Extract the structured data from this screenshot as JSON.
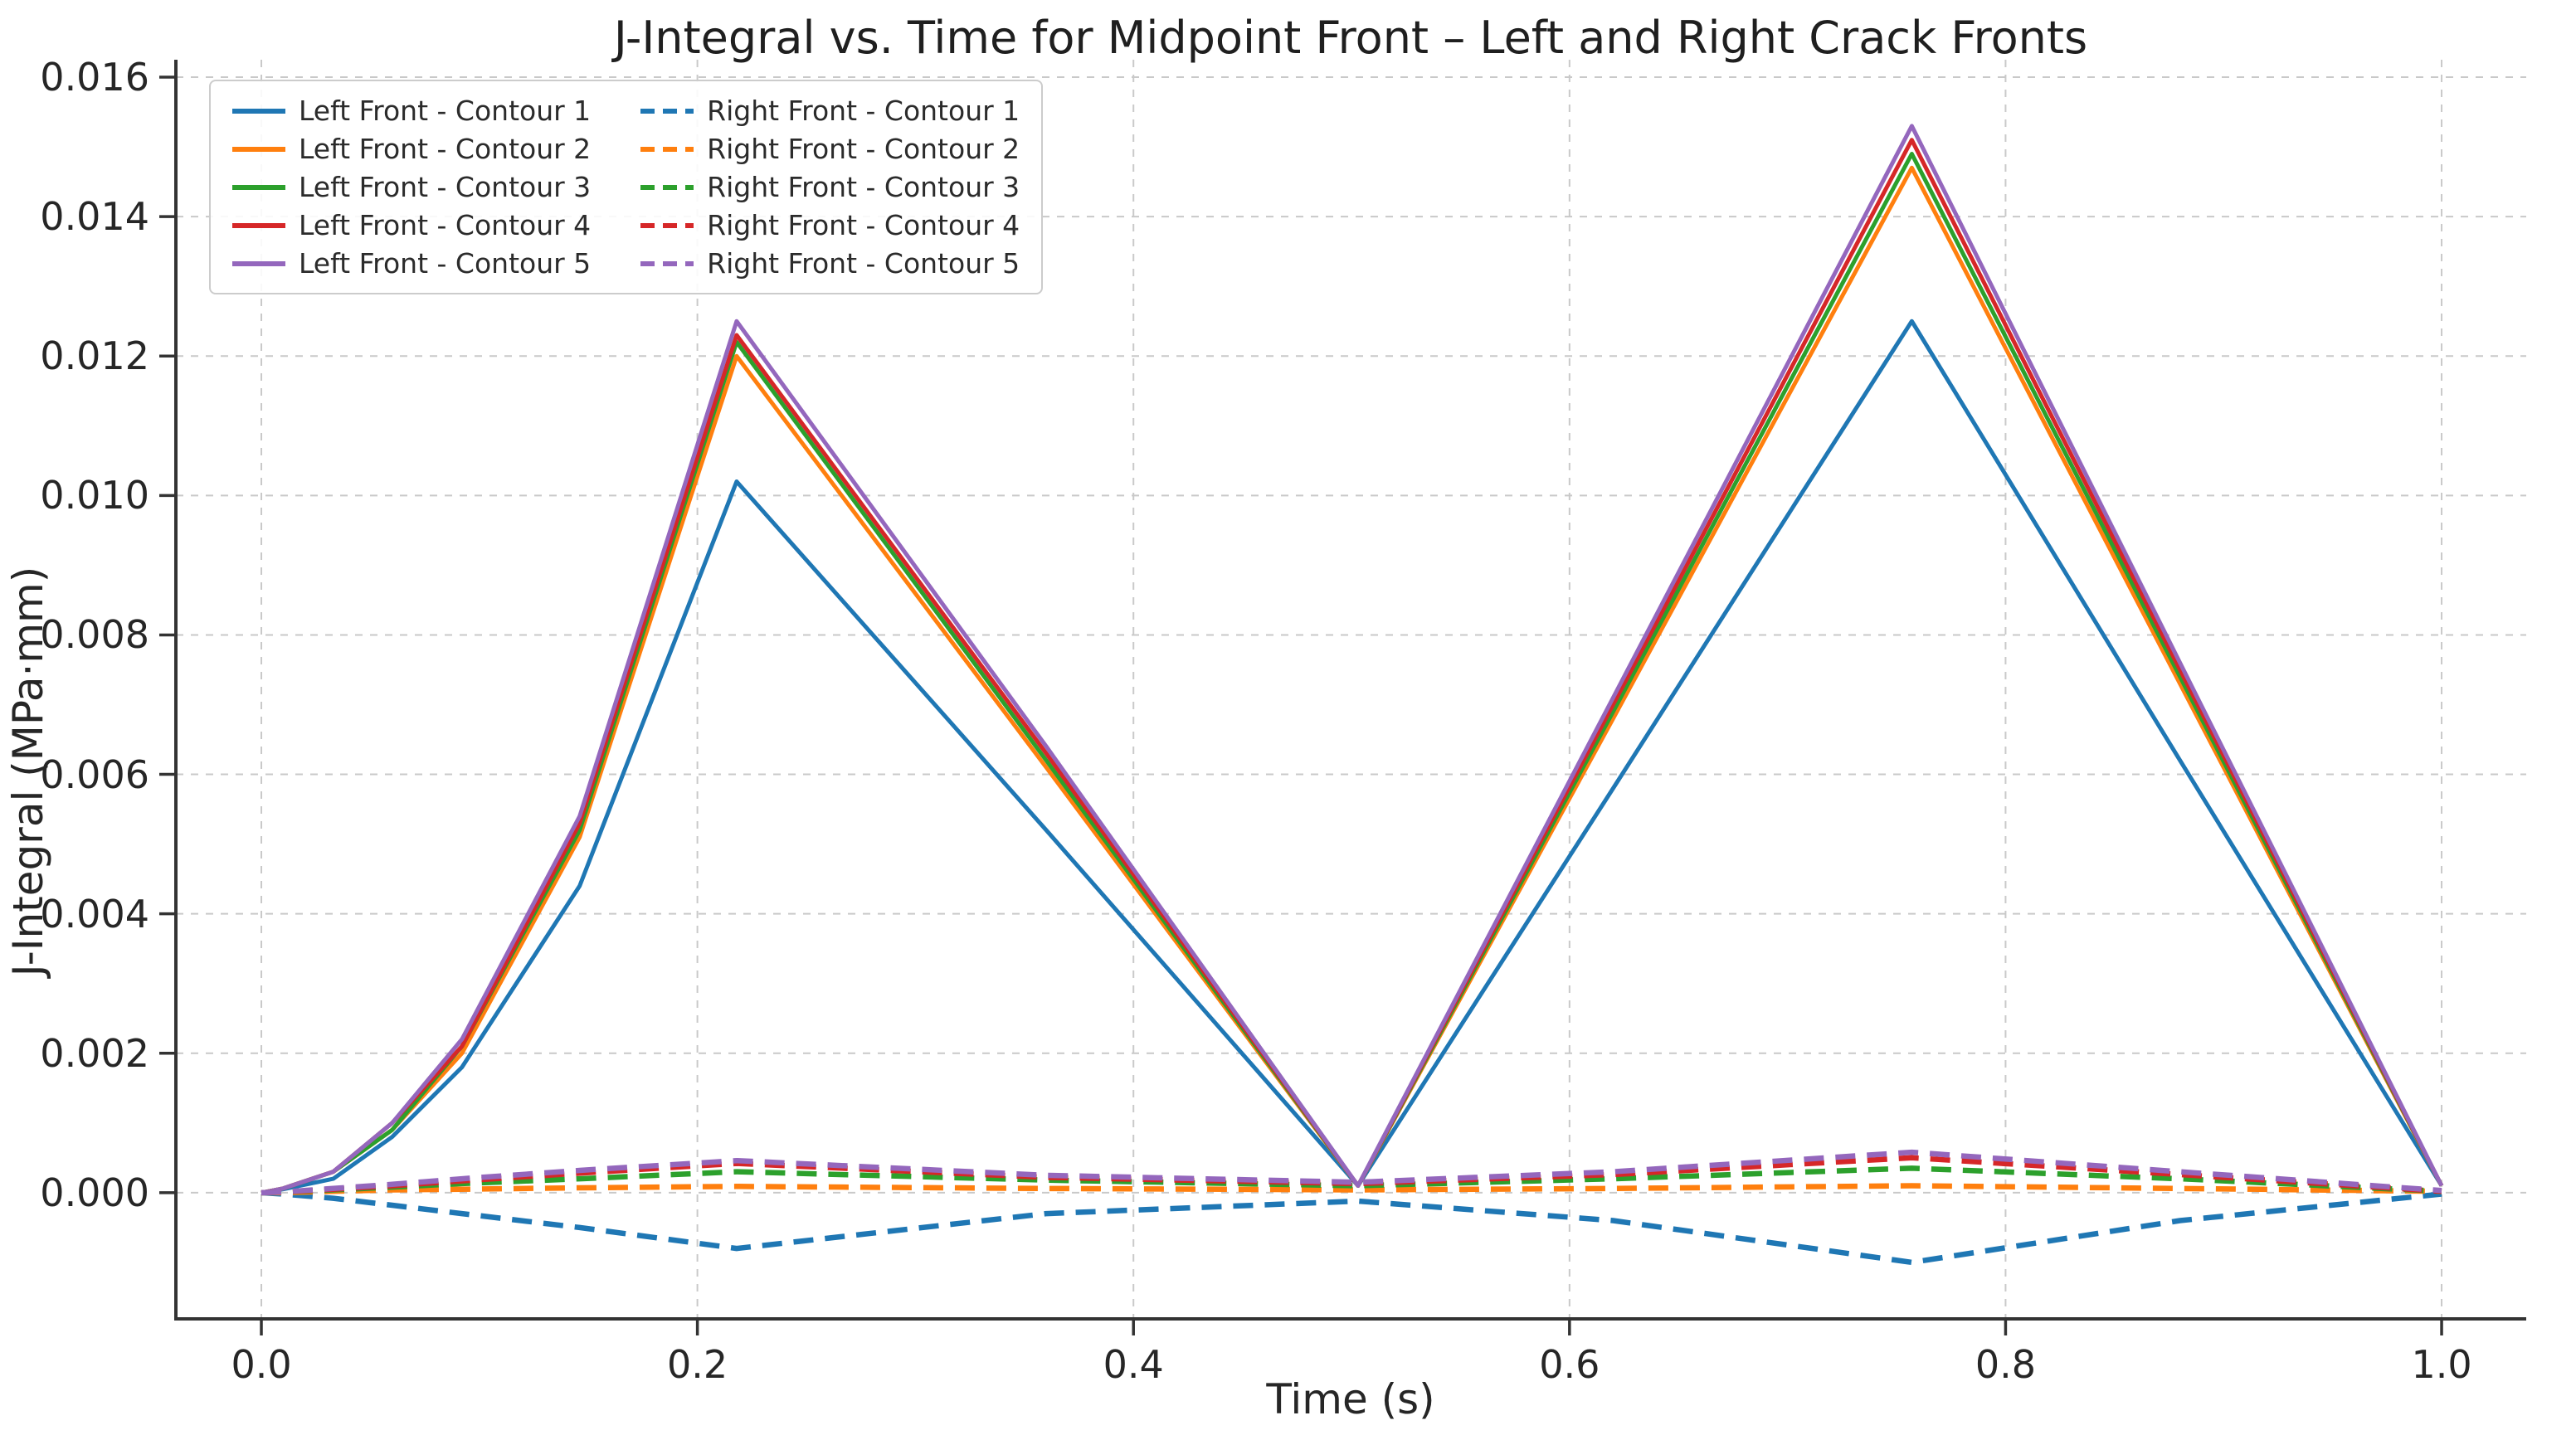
{
  "chart_data": {
    "type": "line",
    "title": "J-Integral vs. Time for Midpoint Front – Left and Right Crack Fronts",
    "xlabel": "Time (s)",
    "ylabel": "J-Integral (MPa·mm)",
    "xlim": [
      -0.0392,
      1.0388
    ],
    "ylim": [
      -0.00181,
      0.01625
    ],
    "grid": true,
    "legend_position": "upper-left",
    "legend_columns": 2,
    "xticks": [
      0.0,
      0.2,
      0.4,
      0.6,
      0.8,
      1.0
    ],
    "xtick_labels": [
      "0.0",
      "0.2",
      "0.4",
      "0.6",
      "0.8",
      "1.0"
    ],
    "yticks": [
      0.0,
      0.002,
      0.004,
      0.006,
      0.008,
      0.01,
      0.012,
      0.014,
      0.016
    ],
    "ytick_labels": [
      "0.000",
      "0.002",
      "0.004",
      "0.006",
      "0.008",
      "0.010",
      "0.012",
      "0.014",
      "0.016"
    ],
    "x": [
      0.0,
      0.01,
      0.033,
      0.06,
      0.092,
      0.146,
      0.218,
      0.36,
      0.503,
      0.62,
      0.757,
      0.88,
      1.0
    ],
    "series": [
      {
        "name": "Left Front - Contour 1",
        "color": "#1f77b4",
        "style": "solid",
        "values": [
          0.0,
          5e-05,
          0.0002,
          0.0008,
          0.0018,
          0.0044,
          0.0102,
          0.0052,
          0.0001,
          0.0058,
          0.0125,
          0.0062,
          0.0001
        ]
      },
      {
        "name": "Left Front - Contour 2",
        "color": "#ff7f0e",
        "style": "solid",
        "values": [
          0.0,
          6e-05,
          0.0003,
          0.0009,
          0.002,
          0.0051,
          0.012,
          0.0061,
          0.0001,
          0.0068,
          0.0147,
          0.0073,
          0.0001
        ]
      },
      {
        "name": "Left Front - Contour 3",
        "color": "#2ca02c",
        "style": "solid",
        "values": [
          0.0,
          6e-05,
          0.0003,
          0.0009,
          0.0021,
          0.0052,
          0.0122,
          0.0062,
          0.0001,
          0.0069,
          0.0149,
          0.0074,
          0.0001
        ]
      },
      {
        "name": "Left Front - Contour 4",
        "color": "#d62728",
        "style": "solid",
        "values": [
          0.0,
          6e-05,
          0.0003,
          0.001,
          0.0021,
          0.0053,
          0.0123,
          0.0063,
          0.0001,
          0.007,
          0.0151,
          0.0075,
          0.0001
        ]
      },
      {
        "name": "Left Front - Contour 5",
        "color": "#9467bd",
        "style": "solid",
        "values": [
          0.0,
          6e-05,
          0.0003,
          0.001,
          0.0022,
          0.0054,
          0.0125,
          0.0064,
          0.0001,
          0.0071,
          0.0153,
          0.0076,
          0.0001
        ]
      },
      {
        "name": "Right Front - Contour 1",
        "color": "#1f77b4",
        "style": "dashed",
        "values": [
          0.0,
          -2e-05,
          -8e-05,
          -0.00018,
          -0.0003,
          -0.0005,
          -0.0008,
          -0.0003,
          -0.00012,
          -0.0004,
          -0.001,
          -0.0004,
          -2e-05
        ]
      },
      {
        "name": "Right Front - Contour 2",
        "color": "#ff7f0e",
        "style": "dashed",
        "values": [
          0.0,
          0.0,
          2e-05,
          4e-05,
          5e-05,
          7e-05,
          9e-05,
          6e-05,
          4e-05,
          6e-05,
          0.0001,
          6e-05,
          2e-05
        ]
      },
      {
        "name": "Right Front - Contour 3",
        "color": "#2ca02c",
        "style": "dashed",
        "values": [
          0.0,
          1e-05,
          4e-05,
          8e-05,
          0.00013,
          0.0002,
          0.0003,
          0.00018,
          0.0001,
          0.0002,
          0.00035,
          0.0002,
          2e-05
        ]
      },
      {
        "name": "Right Front - Contour 4",
        "color": "#d62728",
        "style": "dashed",
        "values": [
          0.0,
          1e-05,
          5e-05,
          0.0001,
          0.00017,
          0.00028,
          0.00042,
          0.00022,
          0.00013,
          0.00026,
          0.0005,
          0.00026,
          2e-05
        ]
      },
      {
        "name": "Right Front - Contour 5",
        "color": "#9467bd",
        "style": "dashed",
        "values": [
          0.0,
          1e-05,
          6e-05,
          0.00012,
          0.0002,
          0.00032,
          0.00046,
          0.00025,
          0.00015,
          0.0003,
          0.00058,
          0.0003,
          3e-05
        ]
      }
    ],
    "colors": {
      "grid": "#c9c9c9",
      "spine": "#333333",
      "tick": "#333333",
      "text": "#262626"
    }
  }
}
